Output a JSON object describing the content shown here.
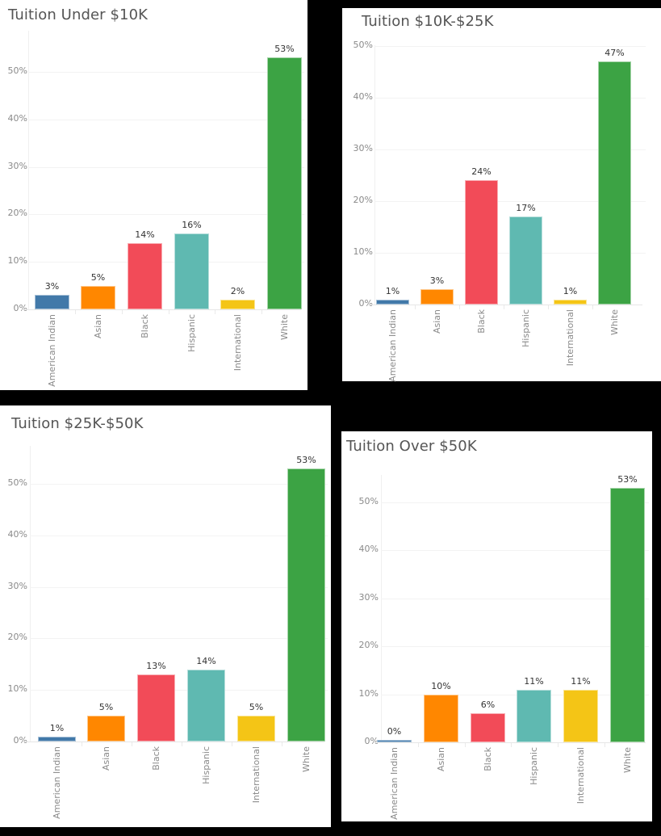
{
  "colors": {
    "American Indian": "#4279a9",
    "Asian": "#ff8700",
    "Black": "#f24b58",
    "Hispanic": "#5fb9b1",
    "International": "#f4c516",
    "White": "#3ca344"
  },
  "chart_data": [
    {
      "type": "bar",
      "title": "Tuition Under $10K",
      "categories": [
        "American Indian",
        "Asian",
        "Black",
        "Hispanic",
        "International",
        "White"
      ],
      "values": [
        3,
        5,
        14,
        16,
        2,
        53
      ],
      "value_labels": [
        "3%",
        "5%",
        "14%",
        "16%",
        "2%",
        "53%"
      ],
      "yticks": [
        "0%",
        "10%",
        "20%",
        "30%",
        "40%",
        "50%"
      ],
      "xlabel": "",
      "ylabel": "",
      "ylim": [
        0,
        55
      ],
      "grid": true,
      "legend": "none"
    },
    {
      "type": "bar",
      "title": "Tuition $10K-$25K",
      "categories": [
        "American Indian",
        "Asian",
        "Black",
        "Hispanic",
        "International",
        "White"
      ],
      "values": [
        1,
        3,
        24,
        17,
        1,
        47
      ],
      "value_labels": [
        "1%",
        "3%",
        "24%",
        "17%",
        "1%",
        "47%"
      ],
      "yticks": [
        "0%",
        "10%",
        "20%",
        "30%",
        "40%",
        "50%"
      ],
      "xlabel": "",
      "ylabel": "",
      "ylim": [
        0,
        50
      ],
      "grid": true,
      "legend": "none"
    },
    {
      "type": "bar",
      "title": "Tuition $25K-$50K",
      "categories": [
        "American Indian",
        "Asian",
        "Black",
        "Hispanic",
        "International",
        "White"
      ],
      "values": [
        1,
        5,
        13,
        14,
        5,
        53
      ],
      "value_labels": [
        "1%",
        "5%",
        "13%",
        "14%",
        "5%",
        "53%"
      ],
      "yticks": [
        "0%",
        "10%",
        "20%",
        "30%",
        "40%",
        "50%"
      ],
      "xlabel": "",
      "ylabel": "",
      "ylim": [
        0,
        55
      ],
      "grid": true,
      "legend": "none"
    },
    {
      "type": "bar",
      "title": "Tuition Over $50K",
      "categories": [
        "American Indian",
        "Asian",
        "Black",
        "Hispanic",
        "International",
        "White"
      ],
      "values": [
        0,
        10,
        6,
        11,
        11,
        53
      ],
      "value_labels": [
        "0%",
        "10%",
        "6%",
        "11%",
        "11%",
        "53%"
      ],
      "yticks": [
        "0%",
        "10%",
        "20%",
        "30%",
        "40%",
        "50%"
      ],
      "xlabel": "",
      "ylabel": "",
      "ylim": [
        0,
        55
      ],
      "grid": true,
      "legend": "none"
    }
  ],
  "panels": [
    {
      "title": "Tuition Under $10K"
    },
    {
      "title": "Tuition $10K-$25K"
    },
    {
      "title": "Tuition $25K-$50K"
    },
    {
      "title": "Tuition Over $50K"
    }
  ]
}
